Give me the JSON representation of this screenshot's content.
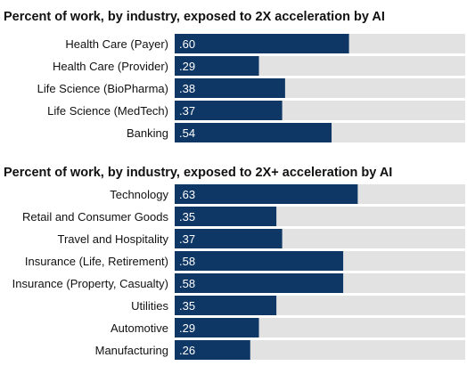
{
  "colors": {
    "bar": "#0f3766",
    "track": "#e2e2e2",
    "text": "#111111",
    "value_text": "#ffffff"
  },
  "chart_data": [
    {
      "type": "bar",
      "orientation": "horizontal",
      "title": "Percent of work, by industry, exposed to 2X acceleration by AI",
      "categories": [
        "Health Care (Payer)",
        "Health Care (Provider)",
        "Life Science (BioPharma)",
        "Life Science (MedTech)",
        "Banking"
      ],
      "values": [
        0.6,
        0.29,
        0.38,
        0.37,
        0.54
      ],
      "value_labels": [
        ".60",
        ".29",
        ".38",
        ".37",
        ".54"
      ],
      "xlim": [
        0,
        1
      ]
    },
    {
      "type": "bar",
      "orientation": "horizontal",
      "title": "Percent of work, by industry, exposed to 2X+ acceleration by AI",
      "categories": [
        "Technology",
        "Retail and Consumer Goods",
        "Travel and Hospitality",
        "Insurance (Life, Retirement)",
        "Insurance (Property, Casualty)",
        "Utilities",
        "Automotive",
        "Manufacturing"
      ],
      "values": [
        0.63,
        0.35,
        0.37,
        0.58,
        0.58,
        0.35,
        0.29,
        0.26
      ],
      "value_labels": [
        ".63",
        ".35",
        ".37",
        ".58",
        ".58",
        ".35",
        ".29",
        ".26"
      ],
      "xlim": [
        0,
        1
      ]
    }
  ]
}
